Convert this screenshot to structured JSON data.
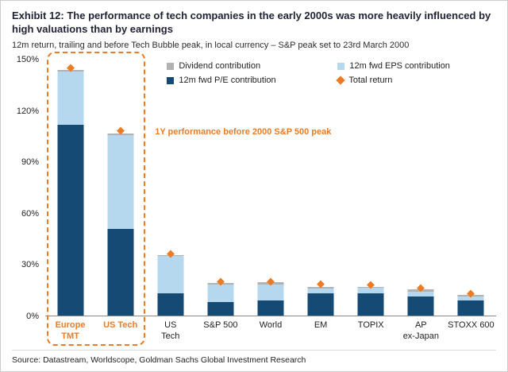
{
  "header": {
    "title": "Exhibit 12: The performance of tech companies in the early 2000s was more heavily influenced by high valuations than by earnings",
    "subtitle": "12m return, trailing and before Tech Bubble peak, in local currency – S&P peak set to 23rd March 2000"
  },
  "legend": {
    "items": [
      {
        "label": "Dividend contribution",
        "color": "#b2b2b2",
        "shape": "square"
      },
      {
        "label": "12m fwd EPS contribution",
        "color": "#b5d8ef",
        "shape": "square"
      },
      {
        "label": "12m fwd P/E contribution",
        "color": "#144a74",
        "shape": "square"
      },
      {
        "label": "Total return",
        "color": "#ed7b23",
        "shape": "diamond"
      }
    ]
  },
  "annotation": {
    "text": "1Y performance before 2000 S&P 500 peak",
    "color": "#ed7b23"
  },
  "chart_data": {
    "type": "bar",
    "stacked": true,
    "title": "Exhibit 12: The performance of tech companies in the early 2000s was more heavily influenced by high valuations than by earnings",
    "subtitle": "12m return, trailing and before Tech Bubble peak, in local currency – S&P peak set to 23rd March 2000",
    "categories": [
      "Europe TMT",
      "US Tech",
      "US Tech",
      "S&P 500",
      "World",
      "EM",
      "TOPIX",
      "AP ex-Japan",
      "STOXX 600"
    ],
    "category_lines": [
      [
        "Europe",
        "TMT"
      ],
      [
        "US Tech"
      ],
      [
        "US",
        "Tech"
      ],
      [
        "S&P 500"
      ],
      [
        "World"
      ],
      [
        "EM"
      ],
      [
        "TOPIX"
      ],
      [
        "AP",
        "ex-Japan"
      ],
      [
        "STOXX 600"
      ]
    ],
    "highlighted_categories": [
      0,
      1
    ],
    "series": [
      {
        "name": "12m fwd P/E contribution",
        "color": "#144a74",
        "values": [
          112,
          51,
          13,
          8,
          9,
          13,
          13,
          11,
          9
        ]
      },
      {
        "name": "12m fwd EPS contribution",
        "color": "#b5d8ef",
        "values": [
          31,
          55,
          22,
          10,
          9,
          3,
          3.5,
          3,
          2
        ]
      },
      {
        "name": "Dividend contribution",
        "color": "#b2b2b2",
        "values": [
          1,
          1,
          0.5,
          1,
          1.5,
          1,
          0.5,
          1.5,
          1
        ]
      }
    ],
    "markers": {
      "name": "Total return",
      "color": "#ed7b23",
      "values": [
        145,
        108,
        36,
        19.5,
        19.5,
        18,
        17.5,
        16,
        12.5
      ]
    },
    "ylim": [
      0,
      150
    ],
    "yticks": [
      "0%",
      "30%",
      "60%",
      "90%",
      "120%",
      "150%"
    ],
    "grid": false,
    "legend_position": "top-inside"
  },
  "footer": {
    "source": "Source: Datastream, Worldscope, Goldman Sachs Global Investment Research"
  }
}
